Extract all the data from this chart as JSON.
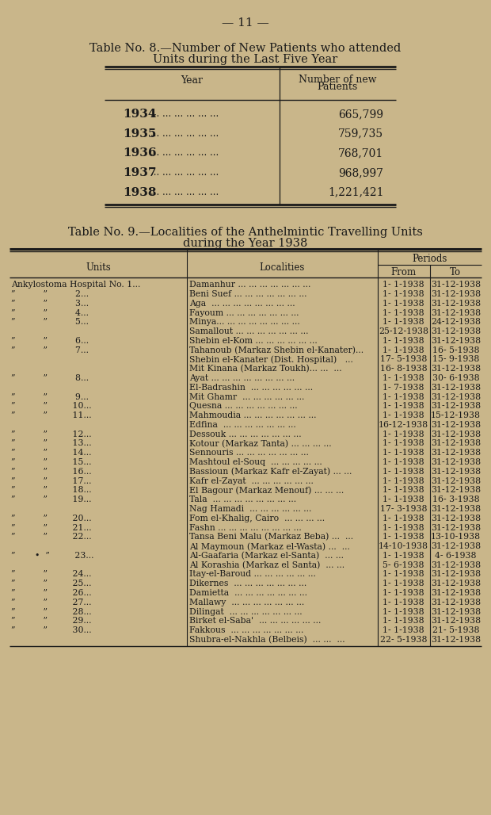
{
  "bg_color": "#c9b68a",
  "text_color": "#1a1a1a",
  "page_title": "— 11 —",
  "table8_title_line1": "Table No. 8.—Number of New Patients who attended",
  "table8_title_line2": "Units during the Last Five Year",
  "table8_col1_header_line1": "Year",
  "table8_col2_header_line1": "Number of new",
  "table8_col2_header_line2": "Patients",
  "table8_rows": [
    [
      "1934",
      "... ... ... ... ... ...",
      "665,799"
    ],
    [
      "1935",
      "... ... ... ... ... ...",
      "759,735"
    ],
    [
      "1936",
      "... ... ... ... ... ...",
      "768,701"
    ],
    [
      "1937",
      "... ... ... ... ... ...",
      "968,997"
    ],
    [
      "1938",
      "... ... ... ... ... ...",
      "1,221,421"
    ]
  ],
  "table9_title_line1": "Table No. 9.—Localities of the Anthelmintic Travelling Units",
  "table9_title_line2": "during the Year 1938",
  "table9_col1_header": "Units",
  "table9_col2_header": "Localities",
  "table9_col3_header": "From",
  "table9_col4_header": "To",
  "table9_periods_header": "Periods",
  "table9_rows": [
    [
      "Ankylostoma Hospital No. 1...",
      "Damanhur ... ... ... ... ... ... ...",
      "1- 1-1938",
      "31-12-1938"
    ],
    [
      "”          ”          2...",
      "Beni Suef ... ... ... ... ... ... ...",
      "1- 1-1938",
      "31-12-1938"
    ],
    [
      "”          ”          3...",
      "Aga  ... ... ... ... ... ... ... ...",
      "1- 1-1938",
      "31-12-1938"
    ],
    [
      "”          ”          4...",
      "Fayoum ... ... ... ... ... ... ...",
      "1- 1-1938",
      "31-12-1938"
    ],
    [
      "”          ”          5...",
      "Minya... ... ... ... ... ... ... ...",
      "1- 1-1938",
      "24-12-1938"
    ],
    [
      "",
      "Samallout ... ... ... ... ... ... ...",
      "25-12-1938",
      "31-12-1938"
    ],
    [
      "”          ”          6...",
      "Shebin el-Kom ... ... ... ... ... ...",
      "1- 1-1938",
      "31-12-1938"
    ],
    [
      "”          ”          7...",
      "Tahanoub (Markaz Shebin el-Kanater)...",
      "1- 1-1938",
      "16- 5-1938"
    ],
    [
      "",
      "Shebin el-Kanater (Dist. Hospital)   ...",
      "17- 5-1938",
      "15- 9-1938"
    ],
    [
      "",
      "Mit Kinana (Markaz Toukh)... ...  ...",
      "16- 8-1938",
      "31-12-1938"
    ],
    [
      "”          ”          8...",
      "Ayat ... ... ... ... ... ... ... ...",
      "1- 1-1938",
      "30- 6-1938"
    ],
    [
      "",
      "El-Badrashin  ... ... ... ... ... ...",
      "1- 7-1938",
      "31-12-1938"
    ],
    [
      "”          ”          9...",
      "Mit Ghamr  ... ... ... ... ... ...",
      "1- 1-1938",
      "31-12-1938"
    ],
    [
      "”          ”         10...",
      "Quesna ... ... ... ... ... ... ...",
      "1- 1-1938",
      "31-12-1938"
    ],
    [
      "”          ”         11...",
      "Mahmoudia ... ... ... ... ... ... ...",
      "1- 1-1938",
      "15-12-1938"
    ],
    [
      "",
      "Edfina  ... ... ... ... ... ... ...",
      "16-12-1938",
      "31-12-1938"
    ],
    [
      "”          ”         12...",
      "Dessouk ... ... ... ... ... ... ...",
      "1- 1-1938",
      "31-12-1938"
    ],
    [
      "”          ”         13...",
      "Kotour (Markaz Tanta) ... ... ... ...",
      "1- 1-1938",
      "31-12-1938"
    ],
    [
      "”          ”         14...",
      "Sennouris ... ... ... ... ... ... ...",
      "1- 1-1938",
      "31-12-1938"
    ],
    [
      "”          ”         15...",
      "Mashtoul el-Souq  ... ... ... ... ...",
      "1- 1-1938",
      "31-12-1938"
    ],
    [
      "”          ”         16...",
      "Bassioun (Markaz Kafr el-Zayat) ... ...",
      "1- 1-1938",
      "31-12-1938"
    ],
    [
      "”          ”         17...",
      "Kafr el-Zayat  ... ... ... ... ... ...",
      "1- 1-1938",
      "31-12-1938"
    ],
    [
      "”          ”         18...",
      "El Bagour (Markaz Menouf) ... ... ...",
      "1- 1-1938",
      "31-12-1938"
    ],
    [
      "”          ”         19...",
      "Tala  ... ... ... ... ... ... ... ...",
      "1- 1-1938",
      "16- 3-1938"
    ],
    [
      "",
      "Nag Hamadi  ... ... ... ... ... ...",
      "17- 3-1938",
      "31-12-1938"
    ],
    [
      "”          ”         20...",
      "Fom el-Khalig, Cairo  ... ... ... ...",
      "1- 1-1938",
      "31-12-1938"
    ],
    [
      "”          ”         21...",
      "Fashn ... ... ... ... ... ... ... ...",
      "1- 1-1938",
      "31-12-1938"
    ],
    [
      "”          ”         22...",
      "Tansa Beni Malu (Markaz Beba) ...  ...",
      "1- 1-1938",
      "13-10-1938"
    ],
    [
      "",
      "Al Maymoun (Markaz el-Wasta) ...  ...",
      "14-10-1938",
      "31-12-1938"
    ],
    [
      "”       •  ”         23...",
      "Al-Gaafaria (Markaz el-Santa)  ... ...",
      "1- 1-1938",
      "4- 6-1938"
    ],
    [
      "",
      "Al Korashia (Markaz el Santa)  ... ...",
      "5- 6-1938",
      "31-12-1938"
    ],
    [
      "”          ”         24...",
      "Itay-el-Baroud ... ... ... ... ... ...",
      "1- 1-1938",
      "31-12-1938"
    ],
    [
      "”          ”         25...",
      "Dikernes  ... ... ... ... ... ... ...",
      "1- 1-1938",
      "31-12-1938"
    ],
    [
      "”          ”         26...",
      "Damietta  ... ... ... ... ... ... ...",
      "1- 1-1938",
      "31-12-1938"
    ],
    [
      "”          ”         27...",
      "Mallawy  ... ... ... ... ... ... ...",
      "1- 1-1938",
      "31-12-1938"
    ],
    [
      "”          ”         28...",
      "Dilingat  ... ... ... ... ... ... ...",
      "1- 1-1938",
      "31-12-1938"
    ],
    [
      "”          ”         29...",
      "Birket el-Saba'  ... ... ... ... ... ...",
      "1- 1-1938",
      "31-12-1938"
    ],
    [
      "”          ”         30...",
      "Fakkous  ... ... ... ... ... ... ...",
      "1- 1-1938",
      "21- 5-1938"
    ],
    [
      "",
      "Shubra-el-Nakhla (Belbeis)  ... ...  ...",
      "22- 5-1938",
      "31-12-1938"
    ]
  ]
}
